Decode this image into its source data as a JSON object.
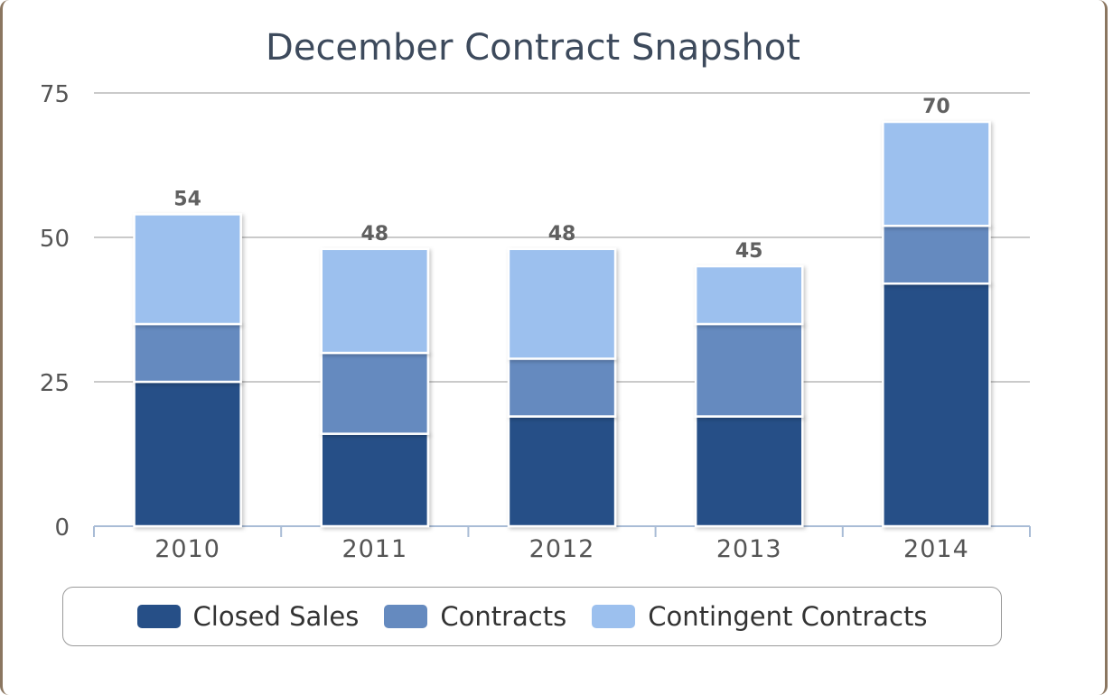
{
  "chart_data": {
    "type": "bar",
    "stacked": true,
    "title": "December Contract Snapshot",
    "xlabel": "",
    "ylabel": "",
    "ylim": [
      0,
      75
    ],
    "yticks": [
      0,
      25,
      50,
      75
    ],
    "grid": true,
    "categories": [
      "2010",
      "2011",
      "2012",
      "2013",
      "2014"
    ],
    "series": [
      {
        "name": "Closed Sales",
        "color": "#264f87",
        "values": [
          25,
          16,
          19,
          19,
          42
        ]
      },
      {
        "name": "Contracts",
        "color": "#658abf",
        "values": [
          10,
          14,
          10,
          16,
          10
        ]
      },
      {
        "name": "Contingent Contracts",
        "color": "#9cc0ee",
        "values": [
          19,
          18,
          19,
          10,
          18
        ]
      }
    ],
    "totals": [
      54,
      48,
      48,
      45,
      70
    ],
    "legend_position": "bottom"
  }
}
